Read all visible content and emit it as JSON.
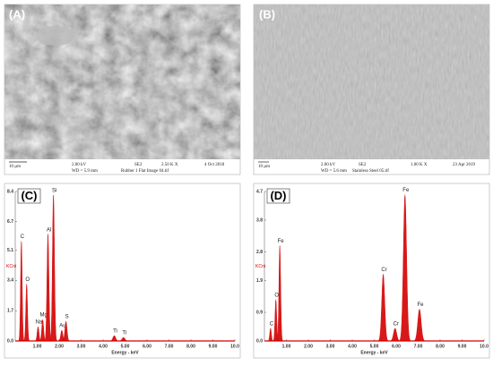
{
  "panels": [
    {
      "label": "(A)",
      "scale_bar": "10 µm",
      "voltage": "2.00 kV",
      "detector": "SE2",
      "magnification": "2.50 K X",
      "date": "4 Oct 2018",
      "working_distance": "WD = 5.9 mm",
      "file": "Rubber 1 Flat Image 04.tif"
    },
    {
      "label": "(B)",
      "scale_bar": "10 µm",
      "voltage": "2.00 kV",
      "detector": "SE2",
      "magnification": "1.00 K X",
      "date": "23 Apr 2019",
      "working_distance": "WD = 5.6 mm",
      "file": "Stainless Steel 05.tif"
    }
  ],
  "chart_data": [
    {
      "type": "spectrum",
      "label": "(C)",
      "y_label": "KCnt",
      "x_label": "Energy - keV",
      "color": "#d40000",
      "xlim": [
        0,
        10
      ],
      "ylim": [
        0,
        8.4
      ],
      "xticks": [
        {
          "value": 1,
          "label": "1.00"
        },
        {
          "value": 2,
          "label": "2.00"
        },
        {
          "value": 3,
          "label": "3.00"
        },
        {
          "value": 4,
          "label": "4.00"
        },
        {
          "value": 5,
          "label": "5.00"
        },
        {
          "value": 6,
          "label": "6.00"
        },
        {
          "value": 7,
          "label": "7.00"
        },
        {
          "value": 8,
          "label": "8.00"
        },
        {
          "value": 9,
          "label": "9.00"
        },
        {
          "value": 10,
          "label": "10.0"
        }
      ],
      "yticks": [
        {
          "value": 0,
          "label": "0.0"
        },
        1.7,
        3.4,
        5.1,
        6.7,
        8.4
      ],
      "peaks": [
        {
          "label": "C",
          "energy": 0.28,
          "counts": 5.6
        },
        {
          "label": "O",
          "energy": 0.52,
          "counts": 3.2
        },
        {
          "label": "Na",
          "energy": 1.04,
          "counts": 0.8
        },
        {
          "label": "Mg",
          "energy": 1.25,
          "counts": 1.2
        },
        {
          "label": "Al",
          "energy": 1.49,
          "counts": 6.0
        },
        {
          "label": "Si",
          "energy": 1.74,
          "counts": 8.2
        },
        {
          "label": "Au",
          "energy": 2.12,
          "counts": 0.6
        },
        {
          "label": "S",
          "energy": 2.31,
          "counts": 1.1
        },
        {
          "label": "Ti",
          "energy": 4.51,
          "counts": 0.3
        },
        {
          "label": "Ti",
          "energy": 4.93,
          "counts": 0.2
        }
      ]
    },
    {
      "type": "spectrum",
      "label": "(D)",
      "y_label": "KCnt",
      "x_label": "Energy - keV",
      "color": "#d40000",
      "xlim": [
        0,
        10
      ],
      "ylim": [
        0,
        4.7
      ],
      "xticks": [
        {
          "value": 1,
          "label": "1.00"
        },
        {
          "value": 2,
          "label": "2.00"
        },
        {
          "value": 3,
          "label": "3.00"
        },
        {
          "value": 4,
          "label": "4.00"
        },
        {
          "value": 5,
          "label": "5.00"
        },
        {
          "value": 6,
          "label": "6.00"
        },
        {
          "value": 7,
          "label": "7.00"
        },
        {
          "value": 8,
          "label": "8.00"
        },
        {
          "value": 9,
          "label": "9.00"
        },
        {
          "value": 10,
          "label": "10.0"
        }
      ],
      "yticks": [
        {
          "value": 0,
          "label": "0.0"
        },
        0.9,
        1.9,
        2.8,
        3.8,
        4.7
      ],
      "peaks": [
        {
          "label": "C",
          "energy": 0.28,
          "counts": 0.4
        },
        {
          "label": "O",
          "energy": 0.52,
          "counts": 1.3
        },
        {
          "label": "Fe",
          "energy": 0.7,
          "counts": 3.0
        },
        {
          "label": "Cr",
          "energy": 5.41,
          "counts": 2.1
        },
        {
          "label": "Cr",
          "energy": 5.95,
          "counts": 0.4
        },
        {
          "label": "Fe",
          "energy": 6.4,
          "counts": 4.6
        },
        {
          "label": "Fe",
          "energy": 7.06,
          "counts": 1.0
        }
      ]
    }
  ]
}
